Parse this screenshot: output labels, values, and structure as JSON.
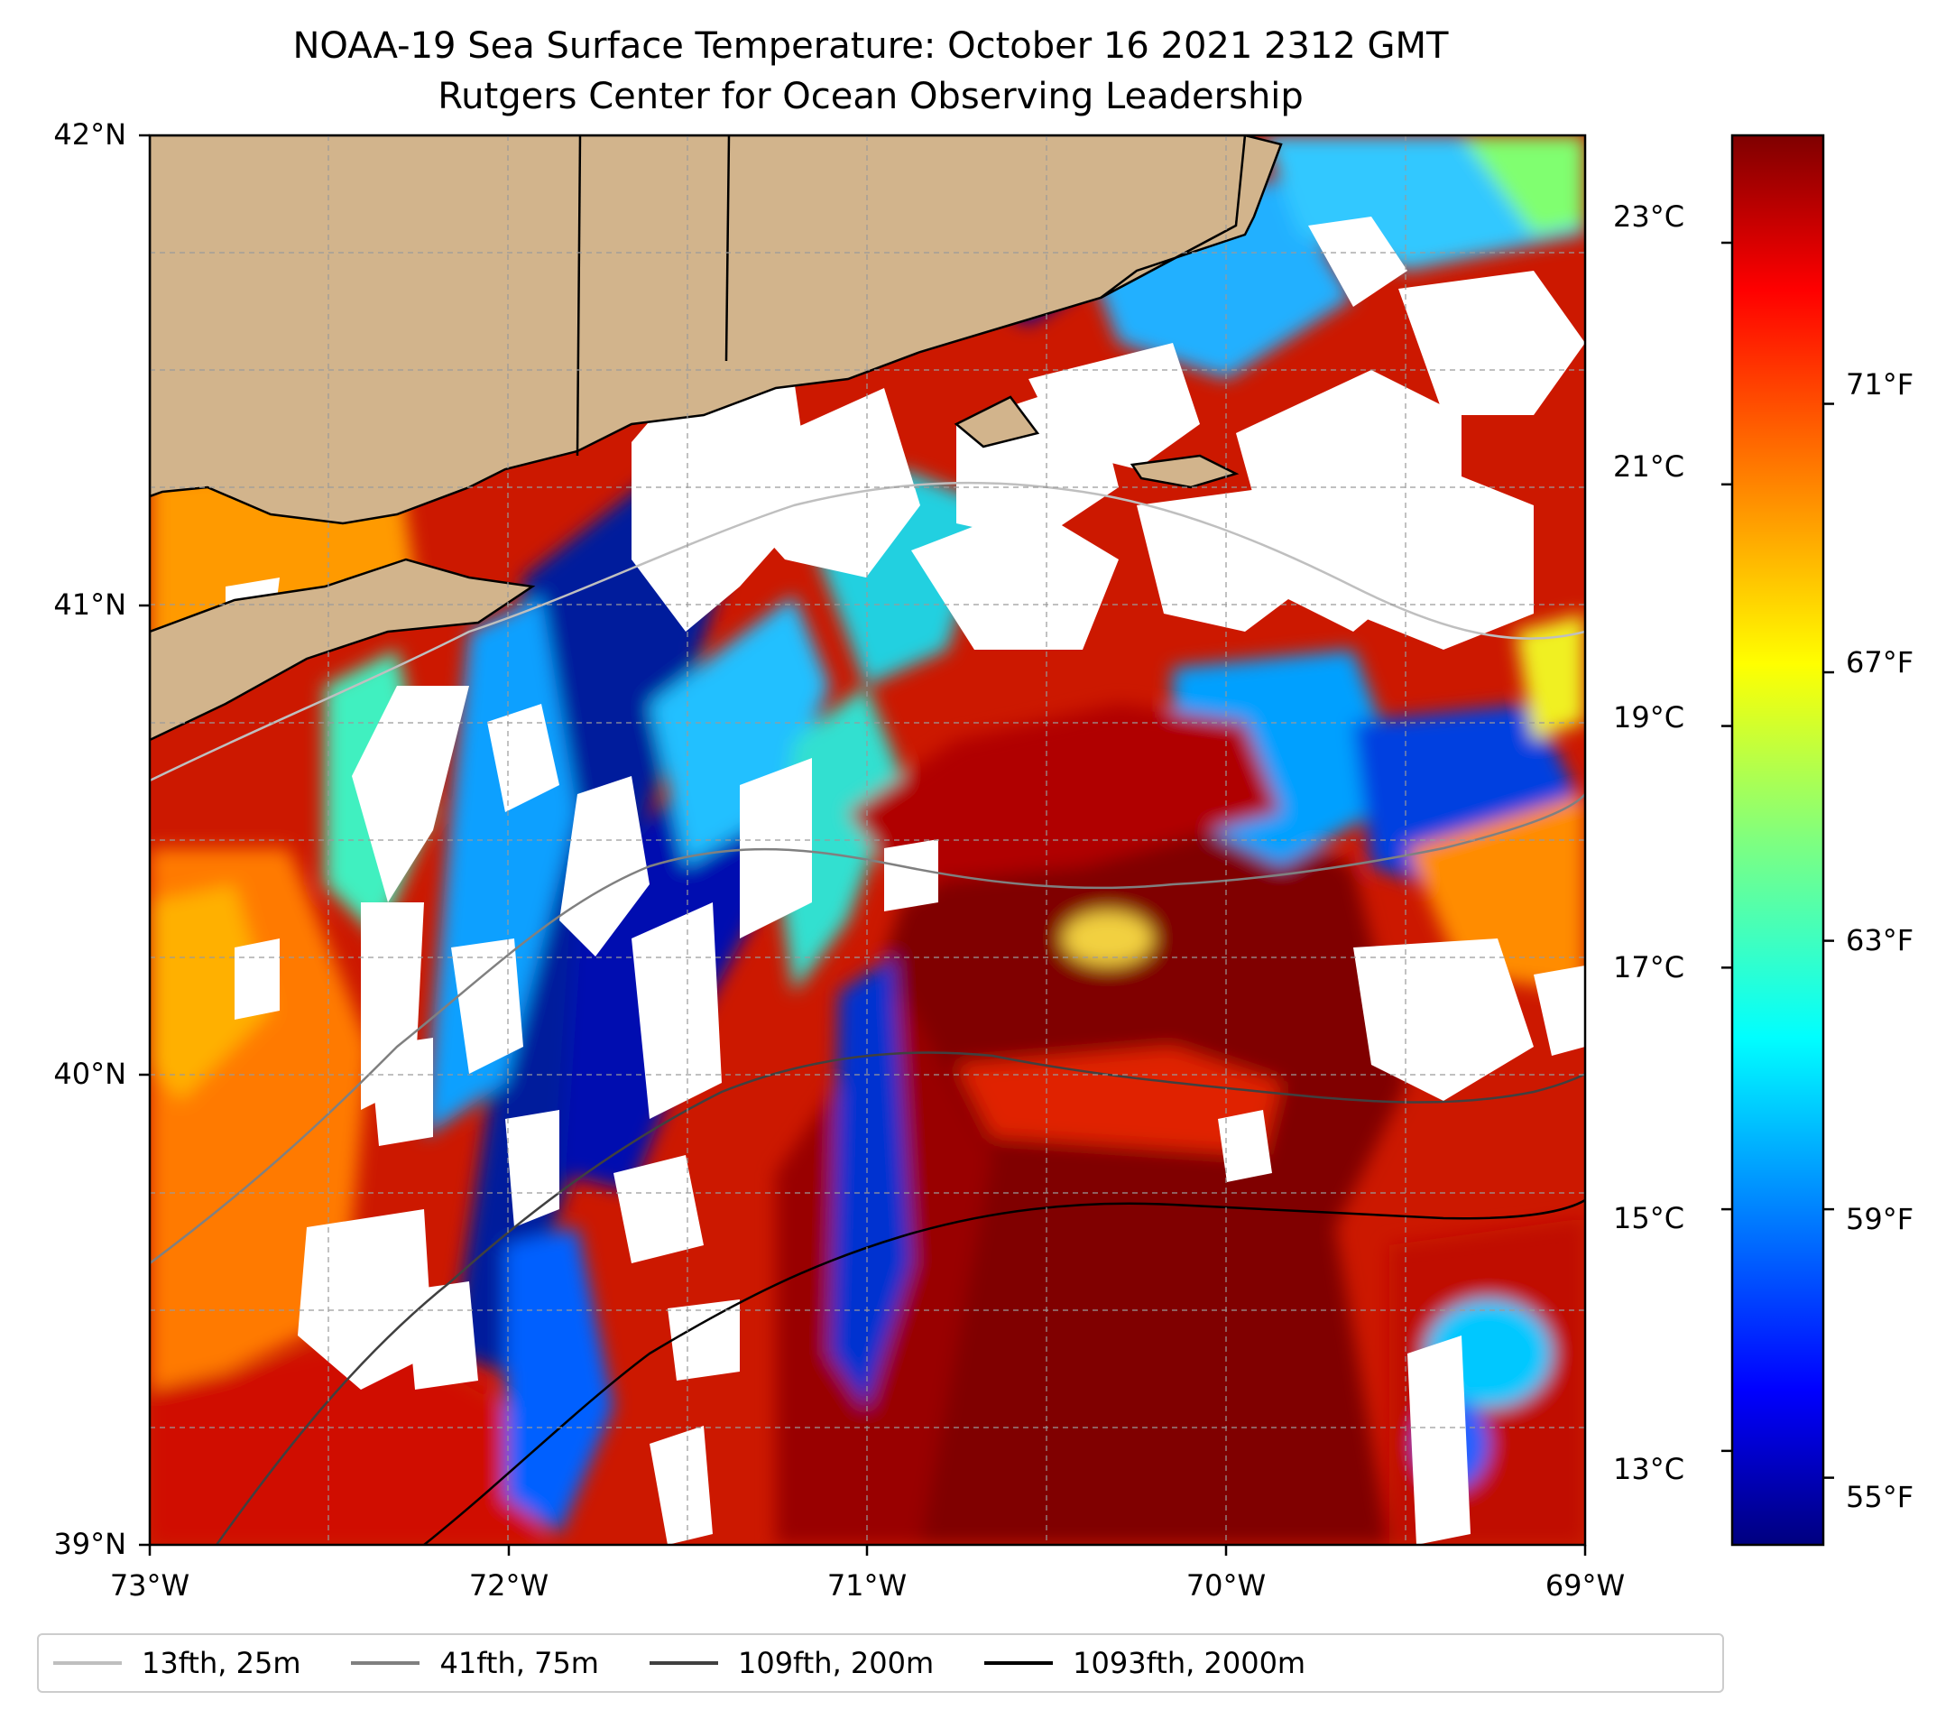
{
  "title": {
    "line1": "NOAA-19 Sea Surface Temperature: October 16 2021 2312 GMT",
    "line2": "Rutgers Center for Ocean Observing Leadership"
  },
  "map": {
    "lat_labels": [
      "42°N",
      "41°N",
      "40°N",
      "39°N"
    ],
    "lon_labels": [
      "73°W",
      "72°W",
      "71°W",
      "70°W",
      "69°W"
    ],
    "extent": {
      "lon_min": -73,
      "lon_max": -69,
      "lat_min": 39,
      "lat_max": 42
    },
    "land_color": "#d2b48c",
    "cloud_color": "#ffffff",
    "grid": true
  },
  "colorbar": {
    "colormap": "jet",
    "celsius_labels": [
      "23°C",
      "21°C",
      "19°C",
      "17°C",
      "15°C",
      "13°C"
    ],
    "fahrenheit_labels": [
      "71°F",
      "67°F",
      "63°F",
      "59°F",
      "55°F"
    ],
    "celsius_values": [
      23,
      21,
      19,
      17,
      15,
      13
    ],
    "fahrenheit_values": [
      71,
      67,
      63,
      59,
      55
    ],
    "range_f": [
      54,
      75
    ]
  },
  "legend": {
    "items": [
      {
        "label": "13fth, 25m",
        "color": "#bfbfbf"
      },
      {
        "label": "41fth, 75m",
        "color": "#808080"
      },
      {
        "label": "109fth, 200m",
        "color": "#404040"
      },
      {
        "label": "1093fth, 2000m",
        "color": "#000000"
      }
    ]
  }
}
